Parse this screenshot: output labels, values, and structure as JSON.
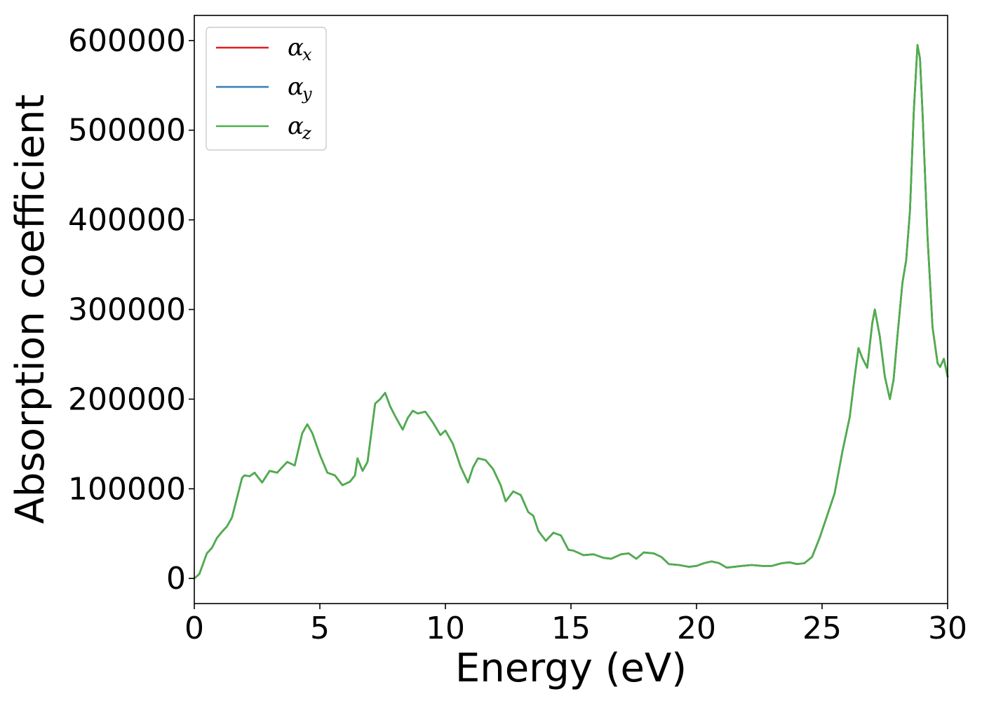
{
  "chart_data": {
    "type": "line",
    "xlabel": "Energy (eV)",
    "ylabel": "Absorption coefficient",
    "xlim": [
      0,
      30
    ],
    "ylim": [
      -28000,
      628000
    ],
    "xticks": [
      0,
      5,
      10,
      15,
      20,
      25,
      30
    ],
    "xtick_labels": [
      "0",
      "5",
      "10",
      "15",
      "20",
      "25",
      "30"
    ],
    "yticks": [
      0,
      100000,
      200000,
      300000,
      400000,
      500000,
      600000
    ],
    "ytick_labels": [
      "0",
      "100000",
      "200000",
      "300000",
      "400000",
      "500000",
      "600000"
    ],
    "grid": false,
    "legend_position": "top-left",
    "x": [
      0,
      0.2,
      0.5,
      0.7,
      0.9,
      1.1,
      1.3,
      1.5,
      1.7,
      1.9,
      2.0,
      2.2,
      2.4,
      2.7,
      3.0,
      3.3,
      3.7,
      4.0,
      4.3,
      4.5,
      4.7,
      5.0,
      5.3,
      5.6,
      5.9,
      6.2,
      6.4,
      6.5,
      6.7,
      6.9,
      7.2,
      7.4,
      7.6,
      7.8,
      8.0,
      8.3,
      8.5,
      8.7,
      8.9,
      9.2,
      9.5,
      9.8,
      10.0,
      10.3,
      10.6,
      10.9,
      11.1,
      11.3,
      11.6,
      11.9,
      12.2,
      12.4,
      12.7,
      13.0,
      13.3,
      13.5,
      13.7,
      14.0,
      14.3,
      14.6,
      14.9,
      15.1,
      15.5,
      15.9,
      16.3,
      16.6,
      17.0,
      17.3,
      17.6,
      17.9,
      18.3,
      18.6,
      18.9,
      19.3,
      19.7,
      20.0,
      20.3,
      20.6,
      20.9,
      21.2,
      21.5,
      21.8,
      22.2,
      22.6,
      23.0,
      23.4,
      23.7,
      24.0,
      24.3,
      24.6,
      24.9,
      25.2,
      25.5,
      25.8,
      26.1,
      26.3,
      26.45,
      26.6,
      26.8,
      27.0,
      27.1,
      27.3,
      27.5,
      27.7,
      27.85,
      28.0,
      28.2,
      28.35,
      28.5,
      28.65,
      28.8,
      28.9,
      29.0,
      29.2,
      29.4,
      29.6,
      29.7,
      29.85,
      30.0
    ],
    "series": [
      {
        "name": "α_x",
        "color": "#e41a1c",
        "values": [
          0,
          5000,
          28000,
          34000,
          45000,
          52000,
          58000,
          68000,
          90000,
          112000,
          115000,
          114000,
          118000,
          107000,
          120000,
          118000,
          130000,
          126000,
          162000,
          172000,
          162000,
          138000,
          118000,
          115000,
          104000,
          108000,
          115000,
          134000,
          120000,
          130000,
          195000,
          200000,
          207000,
          192000,
          181000,
          166000,
          179000,
          187000,
          184000,
          186000,
          174000,
          160000,
          165000,
          150000,
          125000,
          107000,
          124000,
          134000,
          132000,
          122000,
          104000,
          86000,
          97000,
          93000,
          74000,
          70000,
          53000,
          42000,
          51000,
          48000,
          32000,
          31000,
          26000,
          27000,
          23000,
          22000,
          27000,
          28000,
          22000,
          29000,
          28000,
          24000,
          16000,
          15000,
          13000,
          14000,
          17000,
          19000,
          17000,
          12000,
          13000,
          14000,
          15000,
          14000,
          14000,
          17000,
          18000,
          16000,
          17000,
          24000,
          45000,
          70000,
          95000,
          140000,
          180000,
          225000,
          257000,
          246000,
          235000,
          285000,
          300000,
          270000,
          225000,
          200000,
          222000,
          270000,
          330000,
          355000,
          410000,
          520000,
          595000,
          580000,
          520000,
          380000,
          280000,
          240000,
          236000,
          245000,
          225000
        ]
      },
      {
        "name": "α_y",
        "color": "#377eb8",
        "values": [
          0,
          5000,
          28000,
          34000,
          45000,
          52000,
          58000,
          68000,
          90000,
          112000,
          115000,
          114000,
          118000,
          107000,
          120000,
          118000,
          130000,
          126000,
          162000,
          172000,
          162000,
          138000,
          118000,
          115000,
          104000,
          108000,
          115000,
          134000,
          120000,
          130000,
          195000,
          200000,
          207000,
          192000,
          181000,
          166000,
          179000,
          187000,
          184000,
          186000,
          174000,
          160000,
          165000,
          150000,
          125000,
          107000,
          124000,
          134000,
          132000,
          122000,
          104000,
          86000,
          97000,
          93000,
          74000,
          70000,
          53000,
          42000,
          51000,
          48000,
          32000,
          31000,
          26000,
          27000,
          23000,
          22000,
          27000,
          28000,
          22000,
          29000,
          28000,
          24000,
          16000,
          15000,
          13000,
          14000,
          17000,
          19000,
          17000,
          12000,
          13000,
          14000,
          15000,
          14000,
          14000,
          17000,
          18000,
          16000,
          17000,
          24000,
          45000,
          70000,
          95000,
          140000,
          180000,
          225000,
          257000,
          246000,
          235000,
          285000,
          300000,
          270000,
          225000,
          200000,
          222000,
          270000,
          330000,
          355000,
          410000,
          520000,
          595000,
          580000,
          520000,
          380000,
          280000,
          240000,
          236000,
          245000,
          225000
        ]
      },
      {
        "name": "α_z",
        "color": "#4daf4a",
        "values": [
          0,
          5000,
          28000,
          34000,
          45000,
          52000,
          58000,
          68000,
          90000,
          112000,
          115000,
          114000,
          118000,
          107000,
          120000,
          118000,
          130000,
          126000,
          162000,
          172000,
          162000,
          138000,
          118000,
          115000,
          104000,
          108000,
          115000,
          134000,
          120000,
          130000,
          195000,
          200000,
          207000,
          192000,
          181000,
          166000,
          179000,
          187000,
          184000,
          186000,
          174000,
          160000,
          165000,
          150000,
          125000,
          107000,
          124000,
          134000,
          132000,
          122000,
          104000,
          86000,
          97000,
          93000,
          74000,
          70000,
          53000,
          42000,
          51000,
          48000,
          32000,
          31000,
          26000,
          27000,
          23000,
          22000,
          27000,
          28000,
          22000,
          29000,
          28000,
          24000,
          16000,
          15000,
          13000,
          14000,
          17000,
          19000,
          17000,
          12000,
          13000,
          14000,
          15000,
          14000,
          14000,
          17000,
          18000,
          16000,
          17000,
          24000,
          45000,
          70000,
          95000,
          140000,
          180000,
          225000,
          257000,
          246000,
          235000,
          285000,
          300000,
          270000,
          225000,
          200000,
          222000,
          270000,
          330000,
          355000,
          410000,
          520000,
          595000,
          580000,
          520000,
          380000,
          280000,
          240000,
          236000,
          245000,
          225000
        ]
      }
    ],
    "legend": [
      {
        "symbol": "α",
        "sub": "x",
        "color": "#e41a1c"
      },
      {
        "symbol": "α",
        "sub": "y",
        "color": "#377eb8"
      },
      {
        "symbol": "α",
        "sub": "z",
        "color": "#4daf4a"
      }
    ]
  }
}
